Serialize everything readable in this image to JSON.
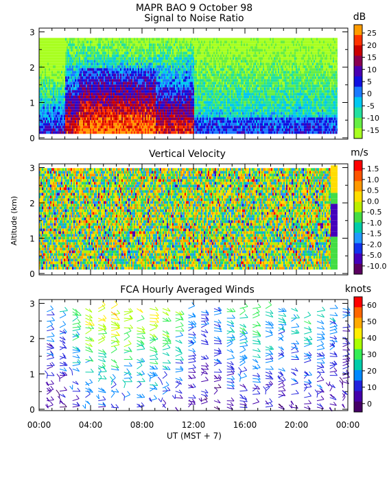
{
  "title_line1": "MAPR BAO  9 October 98",
  "title_line2": "Signal to Noise Ratio",
  "ylabel": "Altitude (km)",
  "xlabel": "UT  (MST + 7)",
  "chart_data": [
    {
      "type": "heatmap",
      "title": "Signal to Noise Ratio",
      "units": "dB",
      "ylim": [
        0,
        3
      ],
      "yticks": [
        "0",
        "1",
        "2",
        "3"
      ],
      "xlim": [
        0,
        24
      ],
      "colorbar_ticks": [
        "25",
        "20",
        "15",
        "10",
        "5",
        "0",
        "-5",
        "-10",
        "-15"
      ],
      "colorbar_colors": [
        "#ff9b00",
        "#ff3300",
        "#cc0000",
        "#8a0050",
        "#4a00b0",
        "#1010e0",
        "#1a7aff",
        "#00c8f0",
        "#22e0a0",
        "#66ee44",
        "#a8ff20"
      ],
      "summary": [
        {
          "x_start": 0,
          "x_end": 2,
          "low": "orange-red",
          "high": "cyan"
        },
        {
          "x_start": 2,
          "x_end": 12,
          "low": "orange-red",
          "high": "blue-purple"
        },
        {
          "x_start": 12,
          "x_end": 23,
          "low": "blue",
          "high": "green"
        }
      ]
    },
    {
      "type": "heatmap",
      "title": "Vertical Velocity",
      "units": "m/s",
      "ylim": [
        0,
        3
      ],
      "yticks": [
        "0",
        "1",
        "2",
        "3"
      ],
      "xlim": [
        0,
        24
      ],
      "colorbar_ticks": [
        "1.5",
        "1.0",
        "0.5",
        "0.0",
        "-0.5",
        "-1.0",
        "-1.5",
        "-2.0",
        "-5.0",
        "-10.0"
      ],
      "colorbar_colors": [
        "#ff0000",
        "#ff5500",
        "#ff9900",
        "#ffdd00",
        "#bbee00",
        "#44dd44",
        "#00ccaa",
        "#2299ff",
        "#1133ee",
        "#4400bb",
        "#5a0060"
      ]
    },
    {
      "type": "scatter",
      "title": "FCA Hourly Averaged Winds",
      "units": "knots",
      "ylim": [
        0,
        3
      ],
      "yticks": [
        "0",
        "1",
        "2",
        "3"
      ],
      "xlim": [
        0,
        24
      ],
      "xticks": [
        "00:00",
        "04:00",
        "08:00",
        "12:00",
        "16:00",
        "20:00",
        "00:00"
      ],
      "colorbar_ticks": [
        "60",
        "50",
        "40",
        "30",
        "20",
        "10",
        "0"
      ],
      "colorbar_colors": [
        "#ff0000",
        "#ff6600",
        "#ffaa00",
        "#ffee00",
        "#aaff00",
        "#33ee55",
        "#00ccaa",
        "#0088ff",
        "#2222dd",
        "#4400aa",
        "#440066"
      ],
      "hours": [
        0,
        1,
        2,
        3,
        4,
        5,
        6,
        7,
        8,
        9,
        10,
        11,
        12,
        13,
        14,
        15,
        16,
        17,
        18,
        19,
        20,
        21,
        22,
        23
      ],
      "speed_knots_by_hour": [
        12,
        14,
        22,
        28,
        30,
        30,
        28,
        26,
        28,
        25,
        22,
        14,
        10,
        12,
        18,
        20,
        22,
        18,
        15,
        16,
        18,
        17,
        14,
        10
      ]
    }
  ]
}
